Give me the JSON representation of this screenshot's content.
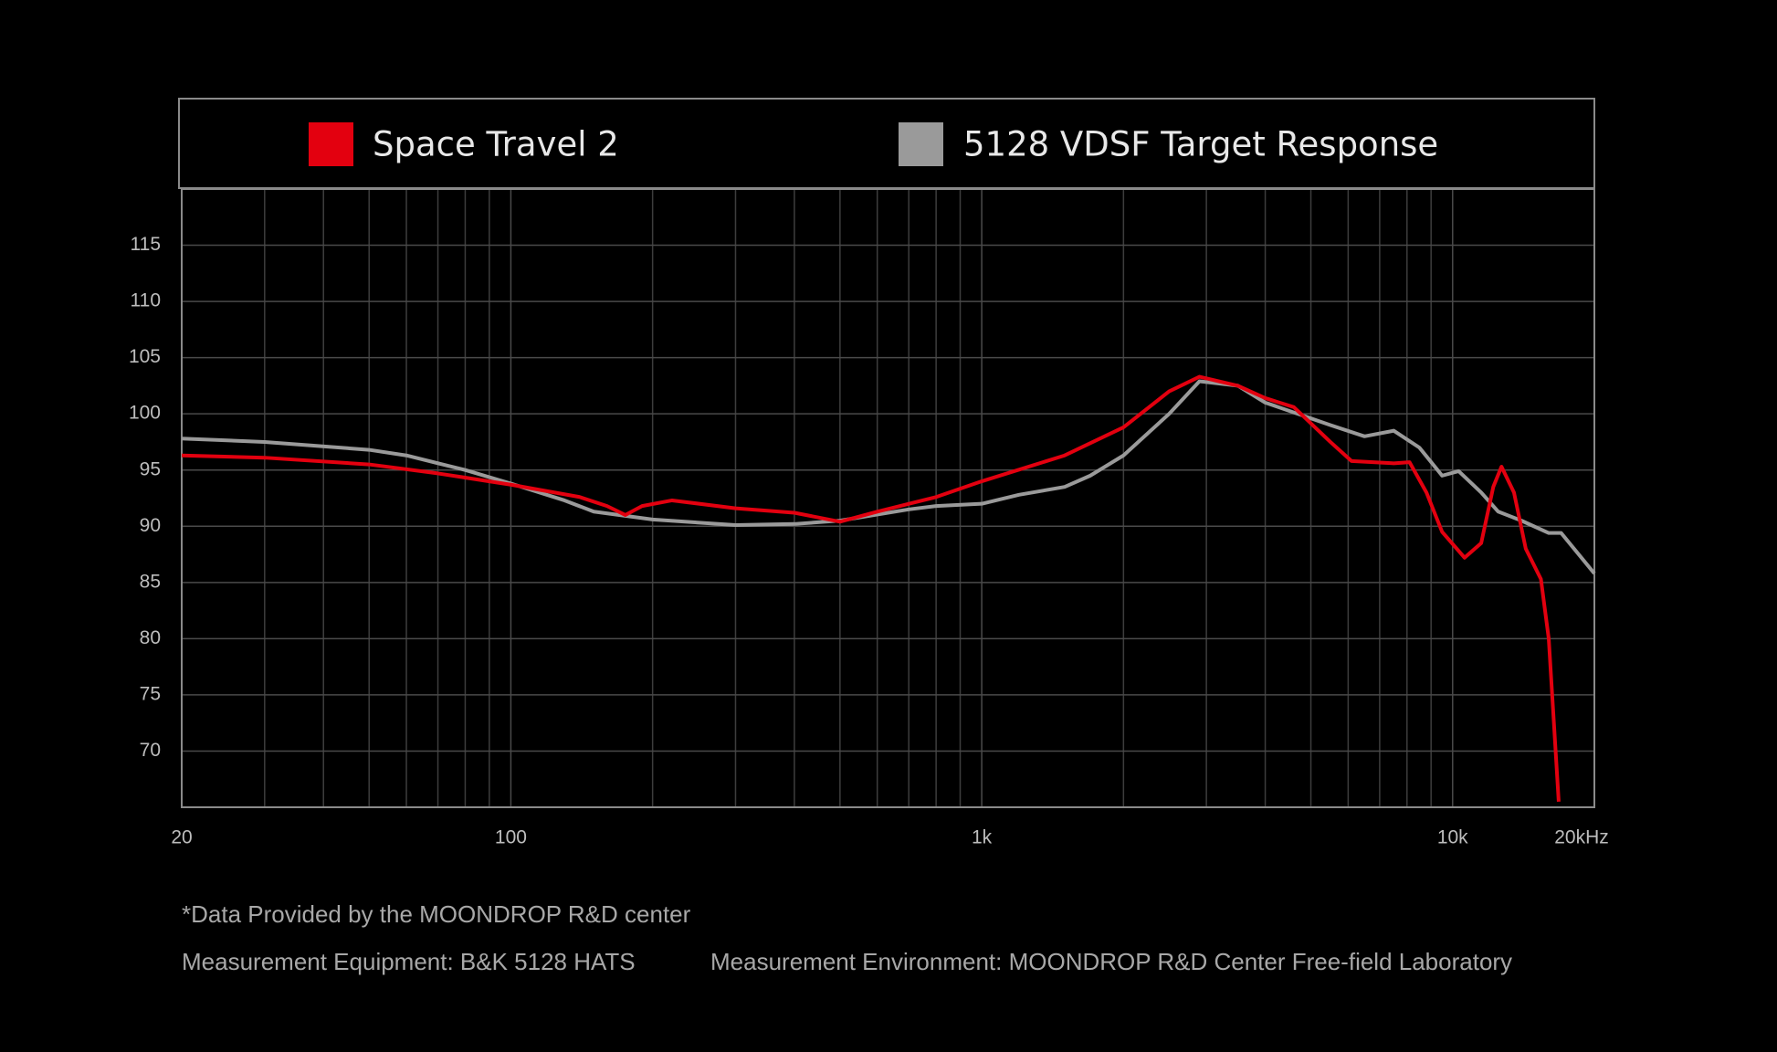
{
  "chart_data": {
    "type": "line",
    "x_scale": "log",
    "grid": true,
    "xlim": [
      20,
      20000
    ],
    "ylim": [
      65,
      120
    ],
    "xticks": [
      20,
      100,
      {
        "value": 1000,
        "label": "1k"
      },
      {
        "value": 10000,
        "label": "10k"
      },
      {
        "value": 20000,
        "label": "20kHz"
      }
    ],
    "minor_xticks": [
      30,
      40,
      50,
      60,
      70,
      80,
      90,
      200,
      300,
      400,
      500,
      600,
      700,
      800,
      900,
      2000,
      3000,
      4000,
      5000,
      6000,
      7000,
      8000,
      9000
    ],
    "yticks": [
      70,
      75,
      80,
      85,
      90,
      95,
      100,
      105,
      110,
      115
    ],
    "legend": "top",
    "series": [
      {
        "name": "Space Travel 2",
        "color": "#e3000f",
        "x": [
          20,
          30,
          50,
          70,
          100,
          140,
          160,
          175,
          190,
          220,
          300,
          400,
          500,
          600,
          800,
          1000,
          1500,
          2000,
          2500,
          2900,
          3500,
          4000,
          4600,
          5500,
          6100,
          7500,
          8100,
          8800,
          9500,
          10600,
          11500,
          12200,
          12700,
          13500,
          14300,
          15400,
          16000,
          16800
        ],
        "values": [
          96.3,
          96.1,
          95.5,
          94.7,
          93.7,
          92.6,
          91.8,
          91.0,
          91.8,
          92.3,
          91.6,
          91.2,
          90.4,
          91.3,
          92.6,
          94.0,
          96.3,
          98.8,
          102.0,
          103.3,
          102.5,
          101.4,
          100.6,
          97.5,
          95.8,
          95.6,
          95.7,
          93.0,
          89.5,
          87.2,
          88.5,
          93.5,
          95.3,
          93.0,
          88.0,
          85.3,
          80.0,
          65.5
        ]
      },
      {
        "name": "5128 VDSF Target Response",
        "color": "#9a9a9a",
        "x": [
          20,
          30,
          50,
          60,
          80,
          100,
          130,
          150,
          200,
          300,
          400,
          500,
          700,
          800,
          1000,
          1200,
          1500,
          1700,
          2000,
          2500,
          2900,
          3500,
          4000,
          5000,
          5500,
          6500,
          7500,
          8500,
          9500,
          10300,
          11500,
          12500,
          14000,
          16000,
          17000,
          20000
        ],
        "values": [
          97.8,
          97.5,
          96.8,
          96.3,
          95.0,
          93.8,
          92.3,
          91.3,
          90.6,
          90.1,
          90.2,
          90.5,
          91.5,
          91.8,
          92.0,
          92.8,
          93.5,
          94.5,
          96.3,
          100.0,
          102.9,
          102.5,
          101.0,
          99.6,
          99.0,
          98.0,
          98.5,
          97.0,
          94.5,
          94.9,
          93.0,
          91.3,
          90.5,
          89.4,
          89.4,
          85.8
        ]
      }
    ],
    "notes": [
      "*Data Provided by the MOONDROP R&D center",
      "Measurement Equipment: B&K 5128 HATS",
      "Measurement Environment: MOONDROP R&D Center Free-field Laboratory"
    ]
  }
}
